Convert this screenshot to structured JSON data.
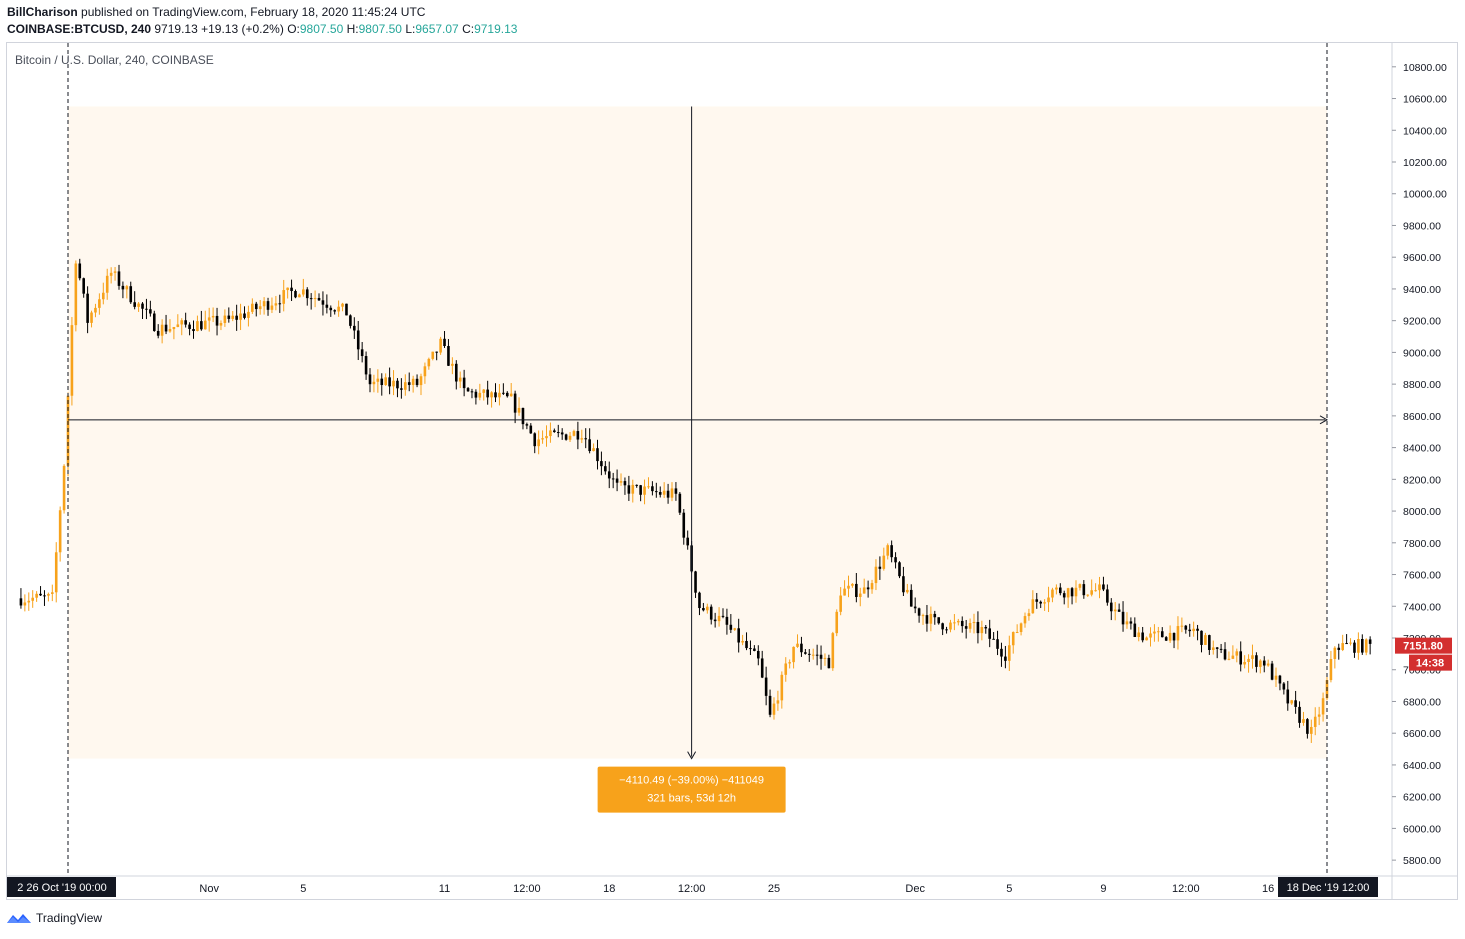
{
  "header": {
    "author": "BillCharison",
    "published_text": "published on TradingView.com, February 18, 2020 11:45:24 UTC",
    "symbol": "COINBASE:BTCUSD, 240",
    "last": "9719.13",
    "change": "+19.13 (+0.2%)",
    "o_label": "O:",
    "o_value": "9807.50",
    "h_label": "H:",
    "h_value": "9807.50",
    "l_label": "L:",
    "l_value": "9657.07",
    "c_label": "C:",
    "c_value": "9719.13"
  },
  "chart_title": "Bitcoin / U.S. Dollar, 240, COINBASE",
  "footer": {
    "brand": "TradingView",
    "icon": "tradingview-logo-icon"
  },
  "colors": {
    "bull": "#f7a21b",
    "bear": "#000000",
    "range_fill": "#fff8ef",
    "label_bg": "#f7a21b",
    "price_badge": "#d32f2f",
    "change_up": "#26a69a"
  },
  "chart_data": {
    "type": "candlestick",
    "title": "Bitcoin / U.S. Dollar, 240, COINBASE",
    "interval": "240",
    "ylim": [
      5700,
      10950
    ],
    "y_ticks": [
      "5800.00",
      "6000.00",
      "6200.00",
      "6400.00",
      "6600.00",
      "6800.00",
      "7000.00",
      "7200.00",
      "7400.00",
      "7600.00",
      "7800.00",
      "8000.00",
      "8200.00",
      "8400.00",
      "8600.00",
      "8800.00",
      "9000.00",
      "9200.00",
      "9400.00",
      "9600.00",
      "9800.00",
      "10000.00",
      "10200.00",
      "10400.00",
      "10600.00",
      "10800.00"
    ],
    "x_ticks": [
      "Nov",
      "5",
      "11",
      "12:00",
      "18",
      "12:00",
      "25",
      "Dec",
      "5",
      "9",
      "12:00",
      "16"
    ],
    "x_tick_positions_note": "category index in the visible date axis",
    "x_tick_dates": [
      "2019-11-01",
      "2019-11-05",
      "2019-11-11",
      "2019-11-14 12:00",
      "2019-11-18",
      "2019-11-21 12:00",
      "2019-11-25",
      "2019-12-01",
      "2019-12-05",
      "2019-12-09",
      "2019-12-12 12:00",
      "2019-12-16"
    ],
    "left_cursor_label": "2  26 Oct '19  00:00",
    "right_cursor_label": "18 Dec '19  12:00",
    "current_price": "7151.80",
    "countdown": "14:38",
    "measure": {
      "line1": "−4110.49 (−39.00%) −411049",
      "line2": "321 bars, 53d 12h",
      "from_price": 10550,
      "to_price": 6440,
      "from_date": "2019-10-26 00:00",
      "to_date": "2019-12-18 12:00"
    },
    "anchors": [
      {
        "date": "2019-10-24",
        "price": 7450
      },
      {
        "date": "2019-10-25 12:00",
        "price": 7450
      },
      {
        "date": "2019-10-26 00:00",
        "price": 8300
      },
      {
        "date": "2019-10-26 12:00",
        "price": 9600
      },
      {
        "date": "2019-10-27",
        "price": 9200
      },
      {
        "date": "2019-10-28",
        "price": 9500
      },
      {
        "date": "2019-10-30",
        "price": 9150
      },
      {
        "date": "2019-11-02",
        "price": 9200
      },
      {
        "date": "2019-11-05",
        "price": 9400
      },
      {
        "date": "2019-11-07",
        "price": 9250
      },
      {
        "date": "2019-11-08",
        "price": 8800
      },
      {
        "date": "2019-11-10",
        "price": 8800
      },
      {
        "date": "2019-11-11",
        "price": 9050
      },
      {
        "date": "2019-11-12",
        "price": 8750
      },
      {
        "date": "2019-11-14",
        "price": 8700
      },
      {
        "date": "2019-11-15",
        "price": 8450
      },
      {
        "date": "2019-11-17",
        "price": 8500
      },
      {
        "date": "2019-11-18 12:00",
        "price": 8150
      },
      {
        "date": "2019-11-21",
        "price": 8100
      },
      {
        "date": "2019-11-22",
        "price": 7400
      },
      {
        "date": "2019-11-23",
        "price": 7300
      },
      {
        "date": "2019-11-24 12:00",
        "price": 7050
      },
      {
        "date": "2019-11-25",
        "price": 6700
      },
      {
        "date": "2019-11-26",
        "price": 7150
      },
      {
        "date": "2019-11-27 12:00",
        "price": 7050
      },
      {
        "date": "2019-11-28",
        "price": 7500
      },
      {
        "date": "2019-11-29",
        "price": 7500
      },
      {
        "date": "2019-11-30",
        "price": 7750
      },
      {
        "date": "2019-12-01",
        "price": 7400
      },
      {
        "date": "2019-12-02",
        "price": 7300
      },
      {
        "date": "2019-12-04",
        "price": 7250
      },
      {
        "date": "2019-12-05",
        "price": 7100
      },
      {
        "date": "2019-12-06",
        "price": 7400
      },
      {
        "date": "2019-12-07",
        "price": 7500
      },
      {
        "date": "2019-12-09",
        "price": 7500
      },
      {
        "date": "2019-12-10",
        "price": 7300
      },
      {
        "date": "2019-12-11",
        "price": 7200
      },
      {
        "date": "2019-12-13",
        "price": 7250
      },
      {
        "date": "2019-12-14",
        "price": 7100
      },
      {
        "date": "2019-12-16",
        "price": 7050
      },
      {
        "date": "2019-12-17",
        "price": 6800
      },
      {
        "date": "2019-12-18 00:00",
        "price": 6600
      },
      {
        "date": "2019-12-18 12:00",
        "price": 6800
      },
      {
        "date": "2019-12-19",
        "price": 7150
      },
      {
        "date": "2019-12-20",
        "price": 7150
      }
    ]
  }
}
